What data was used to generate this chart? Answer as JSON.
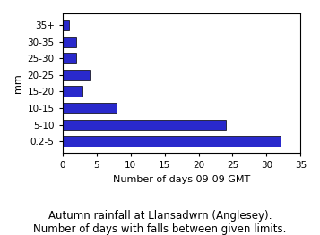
{
  "categories": [
    "0.2-5",
    "5-10",
    "10-15",
    "15-20",
    "20-25",
    "25-30",
    "30-35",
    "35+"
  ],
  "values": [
    32,
    24,
    8,
    3,
    4,
    2,
    2,
    1
  ],
  "bar_color": "#2929cc",
  "ylabel": "mm",
  "xlabel": "Number of days 09-09 GMT",
  "xlim": [
    0,
    35
  ],
  "xticks": [
    0,
    5,
    10,
    15,
    20,
    25,
    30,
    35
  ],
  "title_line1": "Autumn rainfall at Llansadwrn (Anglesey):",
  "title_line2": "Number of days with falls between given limits.",
  "background_color": "#ffffff",
  "bar_edge_color": "#000000",
  "title_fontsize": 8.5,
  "axis_label_fontsize": 8,
  "tick_fontsize": 7.5
}
